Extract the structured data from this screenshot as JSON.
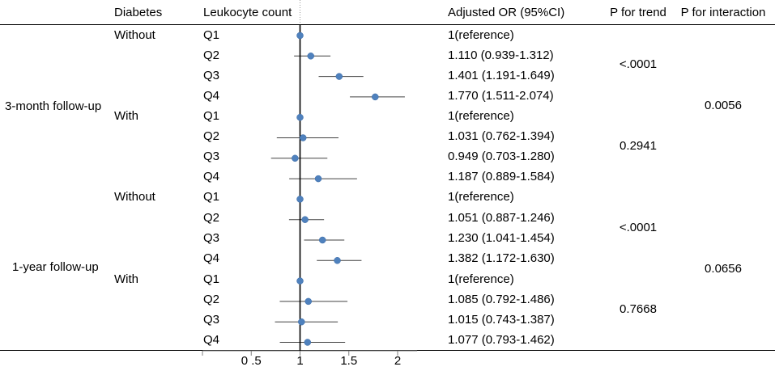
{
  "headers": {
    "diabetes": "Diabetes",
    "leukocyte": "Leukocyte count",
    "or": "Adjusted OR (95%CI)",
    "p_trend": "P for trend",
    "p_interaction": "P for interaction"
  },
  "followups": [
    {
      "label": "3-month follow-up",
      "p_interaction": "0.0056",
      "groups": [
        {
          "diabetes": "Without",
          "p_trend": "<.0001",
          "rows": [
            {
              "quartile": "Q1",
              "or_text": "1(reference)"
            },
            {
              "quartile": "Q2",
              "or_text": "1.110 (0.939-1.312)"
            },
            {
              "quartile": "Q3",
              "or_text": "1.401 (1.191-1.649)"
            },
            {
              "quartile": "Q4",
              "or_text": "1.770 (1.511-2.074)"
            }
          ]
        },
        {
          "diabetes": "With",
          "p_trend": "0.2941",
          "rows": [
            {
              "quartile": "Q1",
              "or_text": "1(reference)"
            },
            {
              "quartile": "Q2",
              "or_text": "1.031 (0.762-1.394)"
            },
            {
              "quartile": "Q3",
              "or_text": "0.949 (0.703-1.280)"
            },
            {
              "quartile": "Q4",
              "or_text": "1.187 (0.889-1.584)"
            }
          ]
        }
      ]
    },
    {
      "label": "1-year follow-up",
      "p_interaction": "0.0656",
      "groups": [
        {
          "diabetes": "Without",
          "p_trend": "<.0001",
          "rows": [
            {
              "quartile": "Q1",
              "or_text": "1(reference)"
            },
            {
              "quartile": "Q2",
              "or_text": "1.051 (0.887-1.246)"
            },
            {
              "quartile": "Q3",
              "or_text": "1.230 (1.041-1.454)"
            },
            {
              "quartile": "Q4",
              "or_text": "1.382 (1.172-1.630)"
            }
          ]
        },
        {
          "diabetes": "With",
          "p_trend": "0.7668",
          "rows": [
            {
              "quartile": "Q1",
              "or_text": "1(reference)"
            },
            {
              "quartile": "Q2",
              "or_text": "1.085 (0.792-1.486)"
            },
            {
              "quartile": "Q3",
              "or_text": "1.015 (0.743-1.387)"
            },
            {
              "quartile": "Q4",
              "or_text": "1.077 (0.793-1.462)"
            }
          ]
        }
      ]
    }
  ],
  "chart_data": {
    "type": "scatter",
    "subtype": "forest-plot",
    "xlabel": "",
    "xlim": [
      0.0,
      2.2
    ],
    "x_ticks": [
      0.5,
      1,
      1.5,
      2
    ],
    "x_tick_labels": [
      "0 .5",
      "1",
      "1.5",
      "2"
    ],
    "reference_line": 1,
    "marker_color": "#4f81bd",
    "ci_color": "#404040",
    "points": [
      {
        "followup": "3-month follow-up",
        "diabetes": "Without",
        "quartile": "Q1",
        "or": 1.0,
        "lower": 1.0,
        "upper": 1.0
      },
      {
        "followup": "3-month follow-up",
        "diabetes": "Without",
        "quartile": "Q2",
        "or": 1.11,
        "lower": 0.939,
        "upper": 1.312
      },
      {
        "followup": "3-month follow-up",
        "diabetes": "Without",
        "quartile": "Q3",
        "or": 1.401,
        "lower": 1.191,
        "upper": 1.649
      },
      {
        "followup": "3-month follow-up",
        "diabetes": "Without",
        "quartile": "Q4",
        "or": 1.77,
        "lower": 1.511,
        "upper": 2.074
      },
      {
        "followup": "3-month follow-up",
        "diabetes": "With",
        "quartile": "Q1",
        "or": 1.0,
        "lower": 1.0,
        "upper": 1.0
      },
      {
        "followup": "3-month follow-up",
        "diabetes": "With",
        "quartile": "Q2",
        "or": 1.031,
        "lower": 0.762,
        "upper": 1.394
      },
      {
        "followup": "3-month follow-up",
        "diabetes": "With",
        "quartile": "Q3",
        "or": 0.949,
        "lower": 0.703,
        "upper": 1.28
      },
      {
        "followup": "3-month follow-up",
        "diabetes": "With",
        "quartile": "Q4",
        "or": 1.187,
        "lower": 0.889,
        "upper": 1.584
      },
      {
        "followup": "1-year follow-up",
        "diabetes": "Without",
        "quartile": "Q1",
        "or": 1.0,
        "lower": 1.0,
        "upper": 1.0
      },
      {
        "followup": "1-year follow-up",
        "diabetes": "Without",
        "quartile": "Q2",
        "or": 1.051,
        "lower": 0.887,
        "upper": 1.246
      },
      {
        "followup": "1-year follow-up",
        "diabetes": "Without",
        "quartile": "Q3",
        "or": 1.23,
        "lower": 1.041,
        "upper": 1.454
      },
      {
        "followup": "1-year follow-up",
        "diabetes": "Without",
        "quartile": "Q4",
        "or": 1.382,
        "lower": 1.172,
        "upper": 1.63
      },
      {
        "followup": "1-year follow-up",
        "diabetes": "With",
        "quartile": "Q1",
        "or": 1.0,
        "lower": 1.0,
        "upper": 1.0
      },
      {
        "followup": "1-year follow-up",
        "diabetes": "With",
        "quartile": "Q2",
        "or": 1.085,
        "lower": 0.792,
        "upper": 1.486
      },
      {
        "followup": "1-year follow-up",
        "diabetes": "With",
        "quartile": "Q3",
        "or": 1.015,
        "lower": 0.743,
        "upper": 1.387
      },
      {
        "followup": "1-year follow-up",
        "diabetes": "With",
        "quartile": "Q4",
        "or": 1.077,
        "lower": 0.793,
        "upper": 1.462
      }
    ]
  }
}
